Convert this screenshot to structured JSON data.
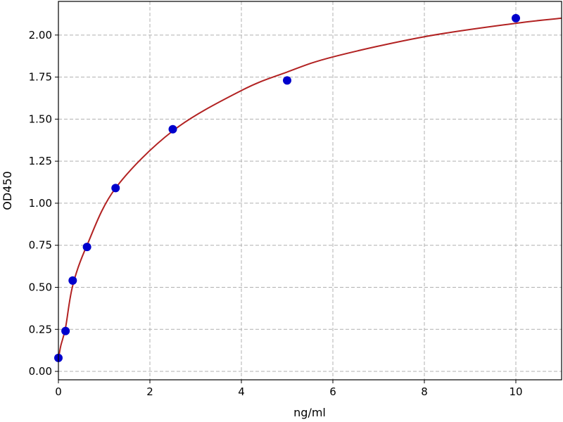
{
  "chart_data": {
    "type": "scatter",
    "title": "",
    "xlabel": "ng/ml",
    "ylabel": "OD450",
    "xlim": [
      0,
      11
    ],
    "ylim": [
      -0.05,
      2.2
    ],
    "grid": true,
    "x_ticks": [
      "0",
      "2",
      "4",
      "6",
      "8",
      "10"
    ],
    "x_tick_values": [
      0,
      2,
      4,
      6,
      8,
      10
    ],
    "y_ticks": [
      "0.00",
      "0.25",
      "0.50",
      "0.75",
      "1.00",
      "1.25",
      "1.50",
      "1.75",
      "2.00"
    ],
    "y_tick_values": [
      0,
      0.25,
      0.5,
      0.75,
      1.0,
      1.25,
      1.5,
      1.75,
      2.0
    ],
    "points": {
      "x": [
        0,
        0.156,
        0.3125,
        0.625,
        1.25,
        2.5,
        5,
        10
      ],
      "y": [
        0.08,
        0.24,
        0.54,
        0.74,
        1.09,
        1.44,
        1.73,
        2.1
      ],
      "color": "#0000cc"
    },
    "fit_curve": {
      "x": [
        0,
        0.05,
        0.156,
        0.3125,
        0.625,
        1.25,
        2.5,
        4,
        5,
        6,
        8,
        10,
        11
      ],
      "y": [
        0.07,
        0.15,
        0.26,
        0.51,
        0.75,
        1.09,
        1.43,
        1.67,
        1.78,
        1.87,
        1.99,
        2.07,
        2.1
      ],
      "color": "#b22222"
    }
  }
}
